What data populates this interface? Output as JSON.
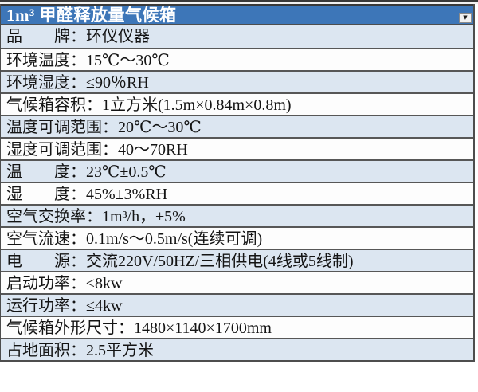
{
  "header": {
    "title": "1m³ 甲醛释放量气候箱",
    "dropdown_icon": "▼"
  },
  "table": {
    "colon": "：",
    "rows": [
      {
        "label": "品　　牌",
        "value": "环仪仪器"
      },
      {
        "label": "环境温度",
        "value": "15℃～30℃"
      },
      {
        "label": "环境湿度",
        "value": "≤90％RH"
      },
      {
        "label": "气候箱容积",
        "value": "1立方米(1.5m×0.84m×0.8m)"
      },
      {
        "label": "温度可调范围",
        "value": "20℃～30℃"
      },
      {
        "label": "湿度可调范围",
        "value": "40～70RH"
      },
      {
        "label": "温　　度",
        "value": "23℃±0.5℃"
      },
      {
        "label": "湿　　度",
        "value": "45%±3%RH"
      },
      {
        "label": "空气交换率",
        "value": "1m³/h，±5%"
      },
      {
        "label": "空气流速",
        "value": "0.1m/s～0.5m/s(连续可调)"
      },
      {
        "label": "电　　源",
        "value": "交流220V/50HZ/三相供电(4线或5线制)"
      },
      {
        "label": "启动功率",
        "value": "≤8kw"
      },
      {
        "label": "运行功率",
        "value": "≤4kw"
      },
      {
        "label": "气候箱外形尺寸",
        "value": "1480×1140×1700mm"
      },
      {
        "label": "占地面积",
        "value": "2.5平方米"
      }
    ]
  },
  "colors": {
    "header_bg": "#3d76b8",
    "header_text": "#ffffff",
    "row_alt_bg": "#dce6f1",
    "row_bg": "#fdfdfd",
    "border": "#4d4d4d",
    "text": "#141414"
  }
}
